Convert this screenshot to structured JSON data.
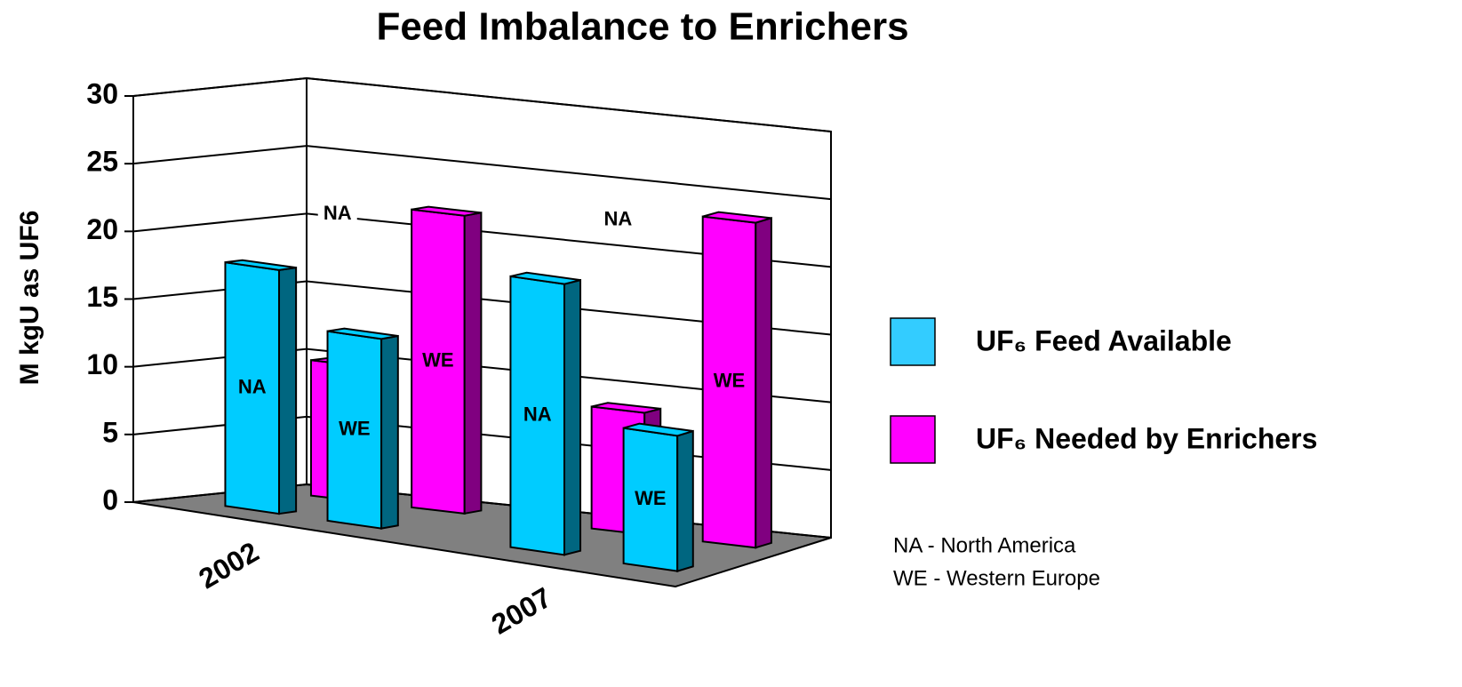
{
  "chart_data": {
    "type": "bar3d",
    "title": "Feed Imbalance to Enrichers",
    "y_label": "M kgU as UF6",
    "categories": [
      "2002",
      "2007"
    ],
    "regions": [
      "NA",
      "WE"
    ],
    "series": [
      {
        "name": "UF₆ Feed Available",
        "color": "#00ccff",
        "values": [
          [
            18,
            14
          ],
          [
            20,
            10
          ]
        ]
      },
      {
        "name": "UF₆ Needed by Enrichers",
        "color": "#ff00ff",
        "values": [
          [
            10,
            22
          ],
          [
            9,
            24
          ]
        ]
      }
    ],
    "ylim": [
      0,
      30
    ],
    "yticks": [
      0,
      5,
      10,
      15,
      20,
      25,
      30
    ],
    "grid": true,
    "notes": [
      "NA - North America",
      "WE - Western Europe"
    ]
  }
}
